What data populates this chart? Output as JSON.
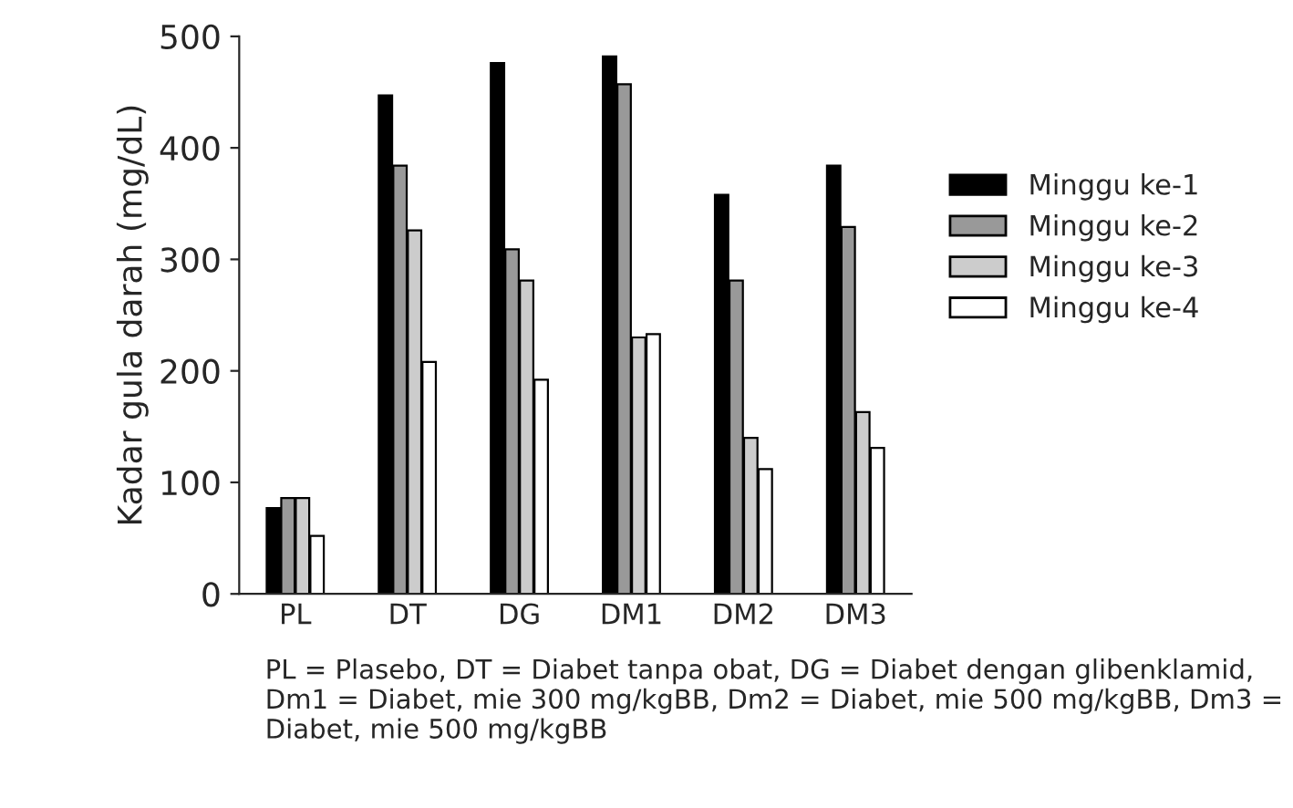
{
  "chart_data": {
    "type": "bar",
    "ylabel": "Kadar gula darah (mg/dL)",
    "categories": [
      "PL",
      "DT",
      "DG",
      "DM1",
      "DM2",
      "DM3"
    ],
    "series": [
      {
        "name": "Minggu ke-1",
        "color": "#000000",
        "values": [
          77,
          447,
          476,
          482,
          358,
          384
        ]
      },
      {
        "name": "Minggu ke-2",
        "color": "#999999",
        "values": [
          86,
          384,
          309,
          457,
          281,
          329
        ]
      },
      {
        "name": "Minggu ke-3",
        "color": "#cccccc",
        "values": [
          86,
          326,
          281,
          230,
          140,
          163
        ]
      },
      {
        "name": "Minggu ke-4",
        "color": "#ffffff",
        "values": [
          52,
          208,
          192,
          233,
          112,
          131
        ]
      }
    ],
    "ylim": [
      0,
      500
    ],
    "yticks": [
      0,
      100,
      200,
      300,
      400,
      500
    ],
    "grid": false,
    "legend": "right",
    "annotations": [
      "PL = Plasebo, DT = Diabet tanpa obat, DG = Diabet dengan glibenklamid, Dm1 = Diabet, mie 300 mg/kgBB, Dm2 = Diabet, mie 500 mg/kgBB, Dm3 = Diabet, mie 500 mg/kgBB"
    ]
  }
}
